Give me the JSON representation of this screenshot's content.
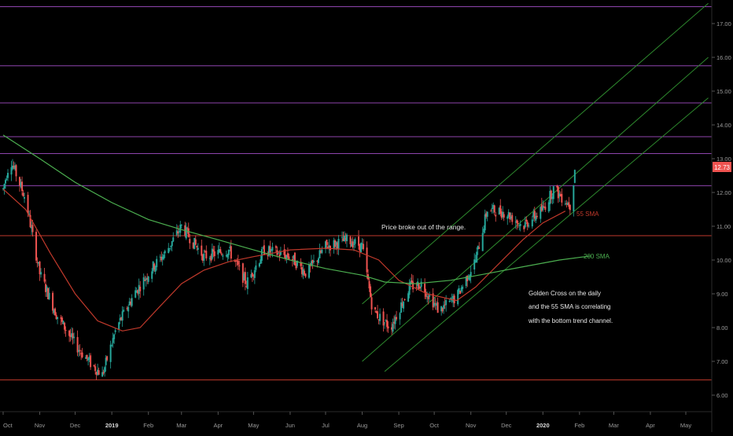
{
  "chart_data": {
    "type": "line",
    "title": "",
    "xlabel": "",
    "ylabel": "",
    "ylim": [
      5.8,
      17.5
    ],
    "y_ticks": [
      "17.00",
      "16.00",
      "15.00",
      "14.00",
      "13.00",
      "12.00",
      "11.00",
      "10.00",
      "9.00",
      "8.00",
      "7.00",
      "6.00"
    ],
    "y_tick_values": [
      17,
      16,
      15,
      14,
      13,
      12,
      11,
      10,
      9,
      8,
      7,
      6
    ],
    "x_ticks": [
      "Oct",
      "Nov",
      "Dec",
      "2019",
      "Feb",
      "Mar",
      "Apr",
      "May",
      "Jun",
      "Jul",
      "Aug",
      "Sep",
      "Oct",
      "Nov",
      "Dec",
      "2020",
      "Feb",
      "Mar",
      "Apr",
      "May"
    ],
    "x_tick_dates": [
      "2018-10-01",
      "2018-11-01",
      "2018-12-01",
      "2019-01-01",
      "2019-02-01",
      "2019-03-01",
      "2019-04-01",
      "2019-05-01",
      "2019-06-01",
      "2019-07-01",
      "2019-08-01",
      "2019-09-01",
      "2019-10-01",
      "2019-11-01",
      "2019-12-01",
      "2020-01-01",
      "2020-02-01",
      "2020-03-01",
      "2020-04-01",
      "2020-05-01"
    ],
    "grid": false,
    "last_price": "12.73",
    "colors": {
      "background": "#000000",
      "candle_up": "#26a69a",
      "candle_down": "#ef5350",
      "sma55": "#c0392b",
      "sma200": "#4caf50",
      "level_purple": "#8e44ad",
      "level_red": "#c0392b",
      "channel": "#2e8b2e",
      "price_badge": "#ef5350",
      "axis_text": "#9a9a9a"
    },
    "horizontal_levels": [
      {
        "price": 17.5,
        "color": "purple"
      },
      {
        "price": 15.75,
        "color": "purple"
      },
      {
        "price": 14.65,
        "color": "purple"
      },
      {
        "price": 13.65,
        "color": "purple"
      },
      {
        "price": 13.15,
        "color": "purple"
      },
      {
        "price": 12.2,
        "color": "purple"
      },
      {
        "price": 10.72,
        "color": "red"
      },
      {
        "price": 6.45,
        "color": "red"
      }
    ],
    "trend_channel": [
      {
        "from": [
          "2019-08-01",
          8.7
        ],
        "to": [
          "2020-05-20",
          17.6
        ]
      },
      {
        "from": [
          "2019-08-01",
          7.0
        ],
        "to": [
          "2020-05-20",
          16.0
        ]
      },
      {
        "from": [
          "2019-08-20",
          6.7
        ],
        "to": [
          "2020-05-20",
          14.8
        ]
      }
    ],
    "series": [
      {
        "name": "55 SMA",
        "x": [
          "2018-10-01",
          "2018-10-20",
          "2018-11-10",
          "2018-12-01",
          "2018-12-20",
          "2019-01-10",
          "2019-01-25",
          "2019-02-10",
          "2019-03-01",
          "2019-03-20",
          "2019-04-10",
          "2019-05-01",
          "2019-06-01",
          "2019-07-01",
          "2019-07-25",
          "2019-08-15",
          "2019-09-01",
          "2019-09-25",
          "2019-10-20",
          "2019-11-05",
          "2019-11-25",
          "2019-12-15",
          "2020-01-01",
          "2020-01-20"
        ],
        "values": [
          12.1,
          11.5,
          10.2,
          9.0,
          8.2,
          7.9,
          8.0,
          8.6,
          9.3,
          9.7,
          9.95,
          10.1,
          10.3,
          10.35,
          10.3,
          10.0,
          9.4,
          9.0,
          8.8,
          9.2,
          9.9,
          10.6,
          11.1,
          11.45
        ]
      },
      {
        "name": "200 SMA",
        "x": [
          "2018-10-01",
          "2018-11-01",
          "2018-12-01",
          "2019-01-01",
          "2019-02-01",
          "2019-03-01",
          "2019-04-01",
          "2019-05-01",
          "2019-06-01",
          "2019-07-01",
          "2019-08-01",
          "2019-08-20",
          "2019-09-15",
          "2019-10-15",
          "2019-11-15",
          "2019-12-15",
          "2020-01-15",
          "2020-02-10"
        ],
        "values": [
          13.7,
          13.0,
          12.3,
          11.7,
          11.2,
          10.9,
          10.6,
          10.3,
          10.0,
          9.75,
          9.55,
          9.35,
          9.3,
          9.4,
          9.6,
          9.8,
          10.0,
          10.12
        ]
      }
    ],
    "annotations": [
      {
        "text": "Price broke out of the range."
      },
      {
        "text": "Golden Cross on the daily"
      },
      {
        "text": "and the 55 SMA is correlating"
      },
      {
        "text": "with the bottom trend channel."
      }
    ],
    "series_labels": [
      "55 SMA",
      "200 SMA"
    ]
  }
}
